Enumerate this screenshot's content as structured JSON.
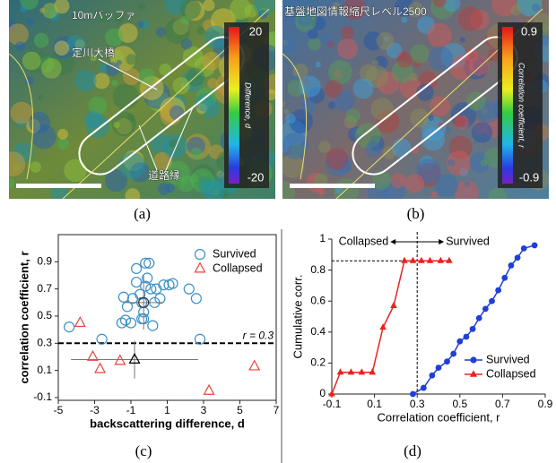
{
  "images": [
    {
      "label": "(a)",
      "annotations": [
        "10mバッファ",
        "定川大橋",
        "道路縁"
      ],
      "colorbar": {
        "title": "Difference, d",
        "lim": [
          -20,
          20
        ],
        "ticks": [
          20,
          -20
        ]
      }
    },
    {
      "label": "(b)",
      "annotations": [
        "基盤地図情報縮尺レベル2500"
      ],
      "colorbar": {
        "title": "Correlation coefficient, r",
        "lim": [
          -0.9,
          0.9
        ],
        "ticks": [
          0.9,
          -0.9
        ]
      }
    }
  ],
  "chart_data": [
    {
      "type": "scatter",
      "panel_label": "(c)",
      "x_label": "backscattering difference, d",
      "y_label": "correlation coefficient, r",
      "xlim": [
        -5,
        7
      ],
      "xticks": [
        -5,
        -3,
        -1,
        1,
        3,
        5,
        7
      ],
      "ylim": [
        -0.12,
        1.1
      ],
      "yticks": [
        -0.1,
        0.1,
        0.3,
        0.5,
        0.7,
        0.9
      ],
      "legend": "upper right",
      "series": [
        {
          "name": "Survived",
          "color": "#3a8fc8",
          "marker": "circle",
          "x": [
            -4.4,
            -2.6,
            -1.5,
            -1.4,
            -1.2,
            -1.0,
            -0.9,
            -0.7,
            -0.7,
            -0.5,
            -0.4,
            -0.3,
            -0.3,
            -0.2,
            -0.2,
            0,
            -0.1,
            0.1,
            0.2,
            0.3,
            0.4,
            0.6,
            0.8,
            1.1,
            1.3,
            2.2,
            2.6,
            2.8,
            -0.4,
            -1.3
          ],
          "values": [
            0.42,
            0.33,
            0.45,
            0.64,
            0.57,
            0.45,
            0.63,
            0.85,
            0.75,
            0.66,
            0.6,
            0.53,
            0.48,
            0.72,
            0.89,
            0.89,
            0.78,
            0.7,
            0.43,
            0.6,
            0.7,
            0.63,
            0.73,
            0.73,
            0.74,
            0.7,
            0.63,
            0.33,
            0.48,
            0.47
          ]
        },
        {
          "name": "Collapsed",
          "color": "#e8453c",
          "marker": "triangle",
          "x": [
            -3.8,
            -3.1,
            -2.7,
            -1.6,
            3.3,
            5.8
          ],
          "values": [
            0.45,
            0.2,
            0.11,
            0.17,
            -0.05,
            0.13
          ]
        }
      ],
      "means": [
        {
          "x": -0.3,
          "y": 0.6,
          "xerr": 1.1,
          "yerr": 0.2,
          "marker": "circle",
          "color": "#333333"
        },
        {
          "x": -0.8,
          "y": 0.18,
          "xerr": 3.5,
          "yerr": 0.14,
          "marker": "triangle",
          "color": "#000000"
        }
      ],
      "threshold": {
        "value": 0.3,
        "label": "r = 0.3"
      }
    },
    {
      "type": "line",
      "panel_label": "(d)",
      "x_label": "Correlation coefficient, r",
      "y_label": "Cumulative corr.",
      "xlim": [
        -0.1,
        0.9
      ],
      "xticks": [
        -0.1,
        0.1,
        0.3,
        0.5,
        0.7,
        0.9
      ],
      "ylim": [
        0,
        1
      ],
      "yticks": [
        0,
        0.2,
        0.4,
        0.6,
        0.8,
        1
      ],
      "legend": "lower right",
      "series": [
        {
          "name": "Survived",
          "color": "#1f3fd6",
          "marker": "circle",
          "x": [
            0.28,
            0.33,
            0.37,
            0.4,
            0.44,
            0.47,
            0.5,
            0.53,
            0.56,
            0.59,
            0.62,
            0.65,
            0.68,
            0.71,
            0.74,
            0.77,
            0.8,
            0.85
          ],
          "values": [
            0,
            0.04,
            0.12,
            0.17,
            0.21,
            0.26,
            0.34,
            0.37,
            0.42,
            0.49,
            0.55,
            0.6,
            0.67,
            0.75,
            0.83,
            0.88,
            0.94,
            0.96
          ]
        },
        {
          "name": "Collapsed",
          "color": "#e8231e",
          "marker": "triangle",
          "x": [
            -0.1,
            -0.06,
            -0.01,
            0.04,
            0.09,
            0.14,
            0.19,
            0.24,
            0.28,
            0.32,
            0.36,
            0.41,
            0.45
          ],
          "values": [
            0,
            0.14,
            0.14,
            0.14,
            0.14,
            0.43,
            0.57,
            0.86,
            0.86,
            0.86,
            0.86,
            0.86,
            0.86
          ]
        }
      ],
      "reference_lines": {
        "x": 0.3,
        "y": 0.86
      },
      "annotations": {
        "left": "Collapsed",
        "right": "Survived"
      }
    }
  ]
}
